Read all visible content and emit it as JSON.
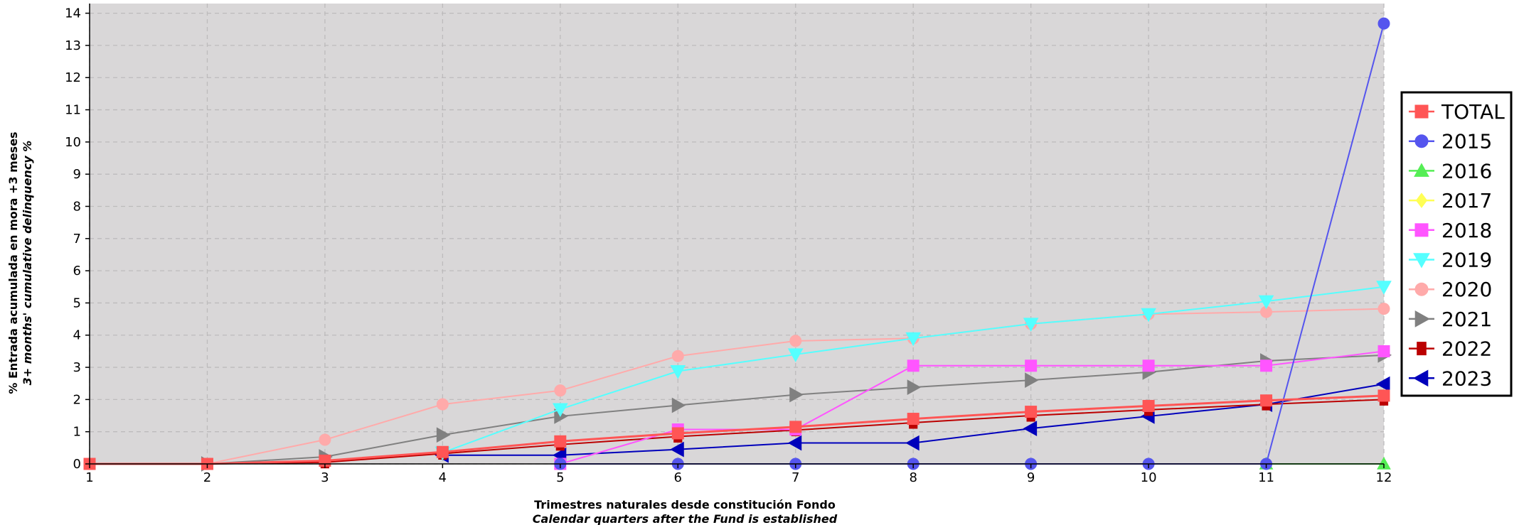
{
  "chart_data": {
    "type": "line",
    "xlabel": "Trimestres naturales desde constitución Fondo",
    "xlabel_en": "Calendar quarters after the Fund is established",
    "ylabel": "% Entrada acumulada en mora +3 meses",
    "ylabel_en": "3+ months' cumulative delinquency %",
    "xlim": [
      1,
      12
    ],
    "ylim": [
      0,
      14.3
    ],
    "x_ticks": [
      1,
      2,
      3,
      4,
      5,
      6,
      7,
      8,
      9,
      10,
      11,
      12
    ],
    "y_ticks": [
      0,
      1,
      2,
      3,
      4,
      5,
      6,
      7,
      8,
      9,
      10,
      11,
      12,
      13,
      14
    ],
    "grid": true,
    "legend_position": "right",
    "plot_background": "#d9d7d8",
    "series": [
      {
        "name": "TOTAL",
        "color": "#ff5555",
        "marker": "square",
        "width": 3,
        "x": [
          1,
          2,
          3,
          4,
          5,
          6,
          7,
          8,
          9,
          10,
          11,
          12
        ],
        "y": [
          0,
          0,
          0.1,
          0.37,
          0.7,
          0.95,
          1.15,
          1.4,
          1.62,
          1.8,
          1.97,
          2.12
        ]
      },
      {
        "name": "2015",
        "color": "#5555ee",
        "marker": "circle",
        "width": 2,
        "x": [
          5,
          6,
          7,
          8,
          9,
          10,
          11,
          12
        ],
        "y": [
          0,
          0,
          0,
          0,
          0,
          0,
          0,
          13.68
        ]
      },
      {
        "name": "2016",
        "color": "#55ee55",
        "marker": "triangle-up",
        "width": 2,
        "x": [
          11,
          12
        ],
        "y": [
          0,
          0
        ]
      },
      {
        "name": "2017",
        "color": "#ffff55",
        "marker": "diamond",
        "width": 2,
        "x": [],
        "y": []
      },
      {
        "name": "2018",
        "color": "#ff55ff",
        "marker": "square",
        "width": 2,
        "x": [
          5,
          6,
          7,
          8,
          9,
          10,
          11,
          12
        ],
        "y": [
          0,
          1.07,
          1.07,
          3.05,
          3.05,
          3.05,
          3.05,
          3.5
        ]
      },
      {
        "name": "2019",
        "color": "#55ffff",
        "marker": "triangle-down",
        "width": 2,
        "x": [
          4,
          5,
          6,
          7,
          8,
          9,
          10,
          11,
          12
        ],
        "y": [
          0.35,
          1.7,
          2.88,
          3.4,
          3.9,
          4.35,
          4.65,
          5.05,
          5.5
        ]
      },
      {
        "name": "2020",
        "color": "#ffaaaa",
        "marker": "circle",
        "width": 2,
        "x": [
          1,
          2,
          3,
          4,
          5,
          6,
          7,
          8,
          9,
          10,
          11,
          12
        ],
        "y": [
          0,
          0,
          0.75,
          1.85,
          2.28,
          3.35,
          3.82,
          3.9,
          4.35,
          4.65,
          4.72,
          4.82
        ]
      },
      {
        "name": "2021",
        "color": "#808080",
        "marker": "triangle-right",
        "width": 2,
        "x": [
          2,
          3,
          4,
          5,
          6,
          7,
          8,
          9,
          10,
          11,
          12
        ],
        "y": [
          0,
          0.22,
          0.9,
          1.48,
          1.82,
          2.15,
          2.38,
          2.6,
          2.85,
          3.2,
          3.38
        ]
      },
      {
        "name": "2022",
        "color": "#bb0000",
        "marker": "bar-square",
        "width": 2,
        "x": [
          1,
          2,
          3,
          4,
          5,
          6,
          7,
          8,
          9,
          10,
          11,
          12
        ],
        "y": [
          0,
          0,
          0.05,
          0.32,
          0.6,
          0.85,
          1.05,
          1.28,
          1.5,
          1.68,
          1.85,
          2.0
        ]
      },
      {
        "name": "2023",
        "color": "#0000bb",
        "marker": "triangle-left",
        "width": 2,
        "x": [
          4,
          5,
          6,
          7,
          8,
          9,
          10,
          11,
          12
        ],
        "y": [
          0.27,
          0.27,
          0.45,
          0.65,
          0.65,
          1.1,
          1.48,
          1.85,
          2.48
        ]
      }
    ]
  }
}
